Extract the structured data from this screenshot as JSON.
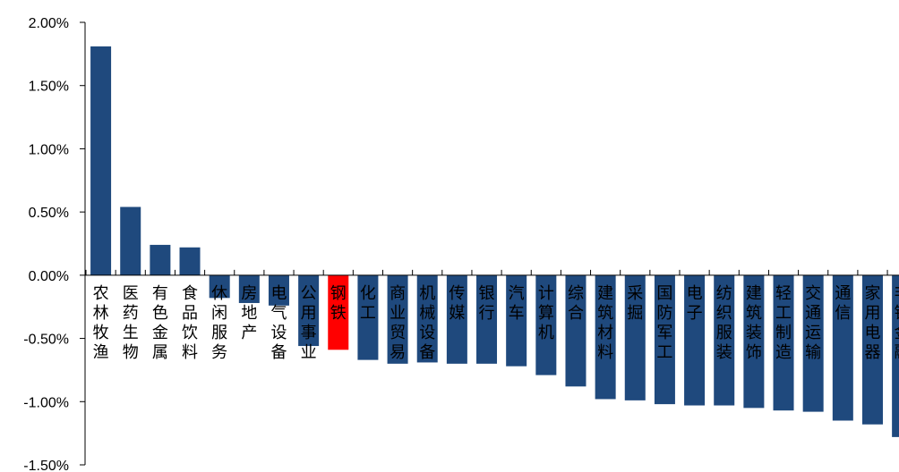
{
  "chart_data": {
    "type": "bar",
    "title": "",
    "xlabel": "",
    "ylabel": "",
    "ylim": [
      -1.5,
      2.0
    ],
    "y_ticks": [
      "2.00%",
      "1.50%",
      "1.00%",
      "0.50%",
      "0.00%",
      "-0.50%",
      "-1.00%",
      "-1.50%"
    ],
    "y_tick_values": [
      2.0,
      1.5,
      1.0,
      0.5,
      0.0,
      -0.5,
      -1.0,
      -1.5
    ],
    "grid": false,
    "legend": "none",
    "categories": [
      "农林牧渔",
      "医药生物",
      "有色金属",
      "食品饮料",
      "休闲服务",
      "房地产",
      "电气设备",
      "公用事业",
      "钢铁",
      "化工",
      "商业贸易",
      "机械设备",
      "传媒",
      "银行",
      "汽车",
      "计算机",
      "综合",
      "建筑材料",
      "采掘",
      "国防军工",
      "电子",
      "纺织服装",
      "建筑装饰",
      "轻工制造",
      "交通运输",
      "通信",
      "家用电器",
      "非银金融"
    ],
    "values": [
      1.81,
      0.54,
      0.24,
      0.22,
      -0.18,
      -0.22,
      -0.24,
      -0.56,
      -0.59,
      -0.67,
      -0.7,
      -0.69,
      -0.7,
      -0.7,
      -0.72,
      -0.79,
      -0.88,
      -0.98,
      -0.99,
      -1.02,
      -1.03,
      -1.03,
      -1.05,
      -1.07,
      -1.08,
      -1.15,
      -1.18,
      -1.28
    ],
    "highlight_category": "钢铁",
    "colors": {
      "bar": "#1F497D",
      "highlight": "#FF0000",
      "axis": "#000000"
    }
  }
}
